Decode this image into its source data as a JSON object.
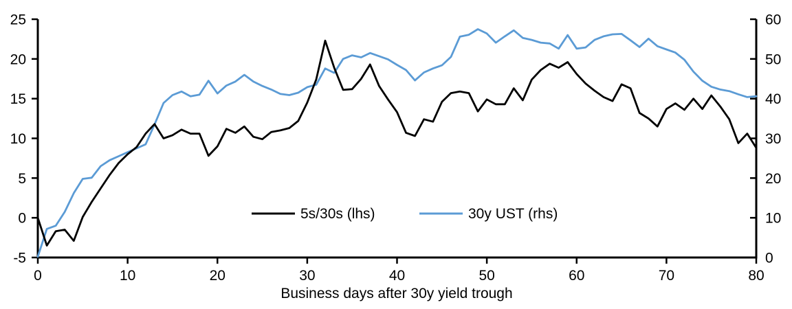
{
  "chart_data": {
    "type": "line",
    "title": "",
    "xlabel": "Business days after 30y yield trough",
    "grid": false,
    "legend_position": "inside-bottom-center",
    "x_axis": {
      "ticks": [
        0,
        10,
        20,
        30,
        40,
        50,
        60,
        70,
        80
      ],
      "range": [
        0,
        80
      ]
    },
    "left_axis": {
      "ticks": [
        25,
        20,
        15,
        10,
        5,
        0,
        -5
      ],
      "range": [
        -5,
        25
      ]
    },
    "right_axis": {
      "ticks": [
        60,
        50,
        40,
        30,
        20,
        10,
        0
      ],
      "range": [
        0,
        60
      ]
    },
    "x": [
      0,
      1,
      2,
      3,
      4,
      5,
      6,
      7,
      8,
      9,
      10,
      11,
      12,
      13,
      14,
      15,
      16,
      17,
      18,
      19,
      20,
      21,
      22,
      23,
      24,
      25,
      26,
      27,
      28,
      29,
      30,
      31,
      32,
      33,
      34,
      35,
      36,
      37,
      38,
      39,
      40,
      41,
      42,
      43,
      44,
      45,
      46,
      47,
      48,
      49,
      50,
      51,
      52,
      53,
      54,
      55,
      56,
      57,
      58,
      59,
      60,
      61,
      62,
      63,
      64,
      65,
      66,
      67,
      68,
      69,
      70,
      71,
      72,
      73,
      74,
      75,
      76,
      77,
      78,
      79,
      80
    ],
    "series": [
      {
        "name": "5s/30s (lhs)",
        "axis": "left",
        "color": "#000000",
        "values": [
          0.0,
          -3.5,
          -1.7,
          -1.5,
          -2.9,
          0.1,
          2.0,
          3.7,
          5.4,
          6.9,
          8.0,
          8.9,
          10.6,
          11.8,
          10.0,
          10.4,
          11.1,
          10.6,
          10.6,
          7.8,
          9.0,
          11.2,
          10.7,
          11.5,
          10.2,
          9.9,
          10.8,
          11.0,
          11.3,
          12.2,
          14.5,
          17.4,
          22.3,
          18.9,
          16.1,
          16.2,
          17.5,
          19.3,
          16.6,
          14.9,
          13.3,
          10.7,
          10.3,
          12.4,
          12.1,
          14.6,
          15.7,
          15.9,
          15.7,
          13.4,
          14.9,
          14.3,
          14.3,
          16.3,
          14.8,
          17.4,
          18.6,
          19.4,
          18.9,
          19.6,
          18.1,
          16.9,
          16.0,
          15.2,
          14.7,
          16.8,
          16.3,
          13.2,
          12.5,
          11.5,
          13.7,
          14.4,
          13.6,
          15.0,
          13.7,
          15.4,
          14.0,
          12.4,
          9.4,
          10.6,
          8.8
        ]
      },
      {
        "name": "30y UST (rhs)",
        "axis": "right",
        "color": "#5b9bd5",
        "values": [
          0.2,
          7.2,
          8.0,
          11.5,
          16.2,
          19.8,
          20.1,
          23.0,
          24.5,
          25.5,
          26.5,
          27.5,
          28.5,
          33.5,
          38.9,
          40.9,
          41.8,
          40.6,
          41.0,
          44.5,
          41.3,
          43.3,
          44.3,
          46.0,
          44.3,
          43.2,
          42.3,
          41.2,
          40.9,
          41.5,
          42.9,
          43.5,
          47.6,
          46.5,
          50.0,
          50.9,
          50.4,
          51.5,
          50.7,
          49.9,
          48.5,
          47.2,
          44.6,
          46.6,
          47.6,
          48.4,
          50.5,
          55.6,
          56.1,
          57.5,
          56.4,
          54.1,
          55.7,
          57.2,
          55.3,
          54.8,
          54.1,
          53.9,
          52.6,
          56.0,
          52.6,
          52.9,
          54.8,
          55.7,
          56.2,
          56.3,
          54.7,
          53.0,
          55.1,
          53.2,
          52.4,
          51.6,
          49.8,
          46.8,
          44.5,
          43.0,
          42.3,
          41.9,
          41.1,
          40.4,
          40.6
        ]
      }
    ]
  },
  "legend": {
    "series1_label": "5s/30s (lhs)",
    "series2_label": "30y UST (rhs)"
  },
  "axis_titles": {
    "x": "Business days after 30y yield trough"
  }
}
